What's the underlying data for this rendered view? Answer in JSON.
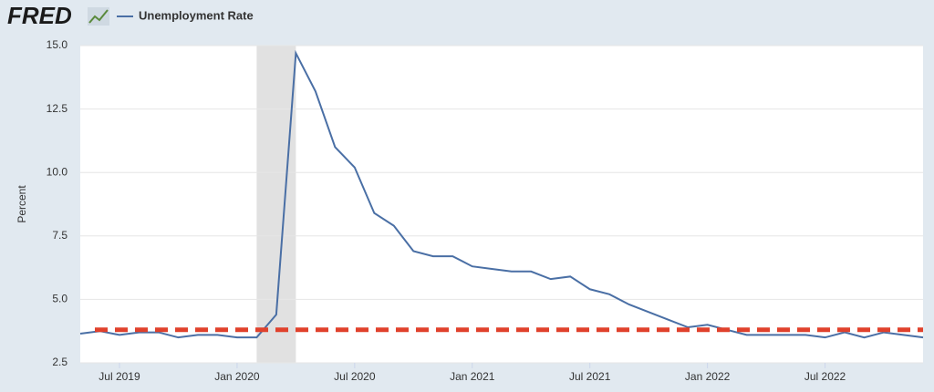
{
  "logo": "FRED",
  "chart_data": {
    "type": "line",
    "y_label": "Percent",
    "x": [
      "2019-05",
      "2019-06",
      "2019-07",
      "2019-08",
      "2019-09",
      "2019-10",
      "2019-11",
      "2019-12",
      "2020-01",
      "2020-02",
      "2020-03",
      "2020-04",
      "2020-05",
      "2020-06",
      "2020-07",
      "2020-08",
      "2020-09",
      "2020-10",
      "2020-11",
      "2020-12",
      "2021-01",
      "2021-02",
      "2021-03",
      "2021-04",
      "2021-05",
      "2021-06",
      "2021-07",
      "2021-08",
      "2021-09",
      "2021-10",
      "2021-11",
      "2021-12",
      "2022-01",
      "2022-02",
      "2022-03",
      "2022-04",
      "2022-05",
      "2022-06",
      "2022-07",
      "2022-08",
      "2022-09",
      "2022-10",
      "2022-11",
      "2022-12"
    ],
    "series": [
      {
        "name": "Unemployment Rate",
        "color": "#4a6fa5",
        "values": [
          3.65,
          3.75,
          3.6,
          3.7,
          3.7,
          3.5,
          3.6,
          3.6,
          3.5,
          3.5,
          4.4,
          14.7,
          13.2,
          11.0,
          10.2,
          8.4,
          7.9,
          6.9,
          6.7,
          6.7,
          6.3,
          6.2,
          6.1,
          6.1,
          5.8,
          5.9,
          5.4,
          5.2,
          4.8,
          4.5,
          4.2,
          3.9,
          4.0,
          3.8,
          3.6,
          3.6,
          3.6,
          3.6,
          3.5,
          3.7,
          3.5,
          3.7,
          3.6,
          3.5
        ]
      }
    ],
    "reference_line": {
      "value": 3.8,
      "color": "#e0412c"
    },
    "shaded": [
      "2020-02",
      "2020-04"
    ],
    "xlim": [
      "2019-05",
      "2022-12"
    ],
    "xticks": [
      {
        "value": "2019-07",
        "label": "Jul 2019"
      },
      {
        "value": "2020-01",
        "label": "Jan 2020"
      },
      {
        "value": "2020-07",
        "label": "Jul 2020"
      },
      {
        "value": "2021-01",
        "label": "Jan 2021"
      },
      {
        "value": "2021-07",
        "label": "Jul 2021"
      },
      {
        "value": "2022-01",
        "label": "Jan 2022"
      },
      {
        "value": "2022-07",
        "label": "Jul 2022"
      }
    ],
    "ylim": [
      2.5,
      15.0
    ],
    "yticks": [
      {
        "value": 2.5,
        "label": "2.5"
      },
      {
        "value": 5,
        "label": "5.0"
      },
      {
        "value": 7.5,
        "label": "7.5"
      },
      {
        "value": 10,
        "label": "10.0"
      },
      {
        "value": 12.5,
        "label": "12.5"
      },
      {
        "value": 15,
        "label": "15.0"
      }
    ],
    "grid": true
  }
}
